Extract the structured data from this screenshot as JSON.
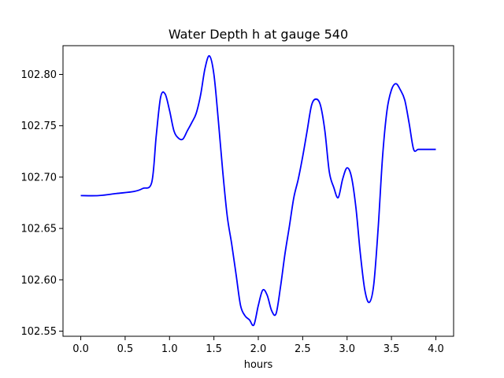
{
  "chart_data": {
    "type": "line",
    "title": "Water Depth h at gauge 540",
    "xlabel": "hours",
    "ylabel": "",
    "xlim": [
      -0.2,
      4.2
    ],
    "ylim": [
      102.545,
      102.828
    ],
    "xticks": [
      0.0,
      0.5,
      1.0,
      1.5,
      2.0,
      2.5,
      3.0,
      3.5,
      4.0
    ],
    "xtick_labels": [
      "0.0",
      "0.5",
      "1.0",
      "1.5",
      "2.0",
      "2.5",
      "3.0",
      "3.5",
      "4.0"
    ],
    "yticks": [
      102.55,
      102.6,
      102.65,
      102.7,
      102.75,
      102.8
    ],
    "ytick_labels": [
      "102.55",
      "102.60",
      "102.65",
      "102.70",
      "102.75",
      "102.80"
    ],
    "grid": false,
    "series": [
      {
        "color": "#0000ff",
        "x": [
          0.0,
          0.2,
          0.4,
          0.6,
          0.7,
          0.8,
          0.85,
          0.9,
          0.95,
          1.0,
          1.05,
          1.1,
          1.15,
          1.2,
          1.25,
          1.3,
          1.35,
          1.4,
          1.45,
          1.5,
          1.55,
          1.6,
          1.65,
          1.7,
          1.75,
          1.8,
          1.85,
          1.9,
          1.95,
          2.0,
          2.05,
          2.1,
          2.15,
          2.2,
          2.25,
          2.3,
          2.35,
          2.4,
          2.45,
          2.5,
          2.55,
          2.6,
          2.65,
          2.7,
          2.75,
          2.8,
          2.85,
          2.9,
          2.95,
          3.0,
          3.05,
          3.1,
          3.15,
          3.2,
          3.25,
          3.3,
          3.35,
          3.4,
          3.45,
          3.5,
          3.55,
          3.6,
          3.65,
          3.7,
          3.75,
          3.8,
          3.85,
          3.9,
          3.95,
          4.0
        ],
        "y": [
          102.682,
          102.682,
          102.684,
          102.686,
          102.689,
          102.695,
          102.74,
          102.778,
          102.781,
          102.765,
          102.745,
          102.738,
          102.737,
          102.745,
          102.753,
          102.762,
          102.78,
          102.806,
          102.818,
          102.8,
          102.755,
          102.705,
          102.662,
          102.635,
          102.605,
          102.575,
          102.565,
          102.561,
          102.556,
          102.575,
          102.59,
          102.585,
          102.57,
          102.567,
          102.593,
          102.625,
          102.652,
          102.68,
          102.698,
          102.72,
          102.745,
          102.77,
          102.776,
          102.77,
          102.745,
          102.705,
          102.69,
          102.68,
          102.698,
          102.709,
          102.7,
          102.67,
          102.625,
          102.59,
          102.578,
          102.595,
          102.65,
          102.72,
          102.765,
          102.785,
          102.791,
          102.785,
          102.775,
          102.752,
          102.727,
          102.727,
          102.727,
          102.727,
          102.727,
          102.727
        ]
      }
    ]
  }
}
